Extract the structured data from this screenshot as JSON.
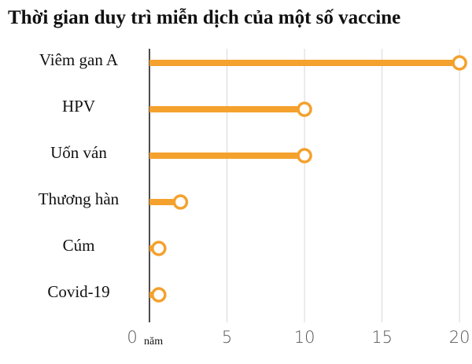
{
  "chart_data": {
    "type": "lollipop",
    "title": "Thời gian duy trì miễn dịch của một số vaccine",
    "categories": [
      "Viêm gan A",
      "HPV",
      "Uốn ván",
      "Thương hàn",
      "Cúm",
      "Covid-19"
    ],
    "values": [
      20,
      10,
      10,
      2,
      0.6,
      0.6
    ],
    "color": "#f4a12d",
    "x_label": "năm",
    "xlim": [
      0,
      20.5
    ],
    "xticks": [
      0,
      5,
      10,
      15,
      20
    ],
    "grid": true
  }
}
